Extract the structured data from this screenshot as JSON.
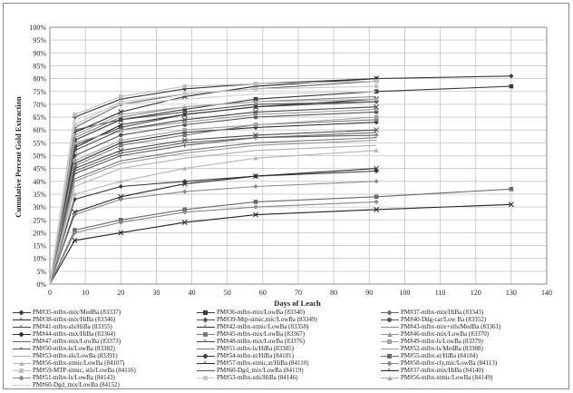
{
  "chart_data": {
    "type": "line",
    "title": "",
    "xlabel": "Days of Leach",
    "ylabel": "Cumulative Percent Gold Extraction",
    "xlim": [
      0,
      140
    ],
    "ylim": [
      0,
      100
    ],
    "x_ticks": [
      "0",
      "10",
      "20",
      "30",
      "40",
      "50",
      "60",
      "70",
      "80",
      "90",
      "100",
      "110",
      "120",
      "130",
      "140"
    ],
    "y_ticks": [
      "0%",
      "5%",
      "10%",
      "15%",
      "20%",
      "25%",
      "30%",
      "35%",
      "40%",
      "45%",
      "50%",
      "55%",
      "60%",
      "65%",
      "70%",
      "75%",
      "80%",
      "85%",
      "90%",
      "95%",
      "100%"
    ],
    "grid": true,
    "legend_position": "bottom",
    "series": [
      {
        "name": "PM#35-mlbx-mix/MedBa (83337)",
        "color": "#3a3a3a",
        "marker": "diamond",
        "x": [
          0,
          7,
          20,
          38,
          58,
          92,
          130
        ],
        "values": [
          0,
          65,
          72,
          76,
          78,
          80,
          81
        ]
      },
      {
        "name": "PM#36-mlbx-mix/LowBa (83340)",
        "color": "#3a3a3a",
        "marker": "square",
        "x": [
          0,
          7,
          20,
          38,
          58,
          92,
          130
        ],
        "values": [
          0,
          56,
          64,
          68,
          72,
          75,
          77
        ]
      },
      {
        "name": "PM#37-mlbx-mix/HiBa (83343)",
        "color": "#6a6a6a",
        "marker": "diamond",
        "x": [
          0,
          7,
          20,
          38,
          58,
          92
        ],
        "values": [
          0,
          61,
          70,
          74,
          76,
          79
        ]
      },
      {
        "name": "PM#38-mlbx-mix/HiBa (83346)",
        "color": "#2a2a2a",
        "marker": "cross",
        "x": [
          0,
          7,
          20,
          38,
          58,
          92
        ],
        "values": [
          0,
          59,
          67,
          73,
          77,
          80
        ]
      },
      {
        "name": "PM#39-Mtp-stmic,mic/LowBa (83349)",
        "color": "#555555",
        "marker": "diamond",
        "x": [
          0,
          7,
          20,
          38,
          58,
          92
        ],
        "values": [
          0,
          54,
          61,
          66,
          69,
          71
        ]
      },
      {
        "name": "PM#40-Ddg-car/Low Ba (83352)",
        "color": "#555555",
        "marker": "circle",
        "x": [
          0,
          7,
          20,
          38,
          58,
          92
        ],
        "values": [
          0,
          50,
          58,
          62,
          65,
          67
        ]
      },
      {
        "name": "PM#41-mlbx-sls/HiBa (83355)",
        "color": "#444444",
        "marker": "cross",
        "x": [
          0,
          7,
          20,
          38,
          58,
          92
        ],
        "values": [
          0,
          52,
          60,
          64,
          67,
          69
        ]
      },
      {
        "name": "PM#42-mlbx-stmic/LowBa (83358)",
        "color": "#333333",
        "marker": "cross",
        "x": [
          0,
          7,
          20,
          38,
          58,
          92
        ],
        "values": [
          0,
          53,
          62,
          66,
          69,
          72
        ]
      },
      {
        "name": "PM#43-mlbx-mix+stls/MedBa (83361)",
        "color": "#8a8a8a",
        "marker": "none",
        "x": [
          0,
          7,
          20,
          38,
          58,
          92
        ],
        "values": [
          0,
          57,
          65,
          69,
          71,
          73
        ]
      },
      {
        "name": "PM#44-mlbx-mix/HiBa (83364)",
        "color": "#2e2e2e",
        "marker": "diamond",
        "x": [
          0,
          7,
          20,
          38,
          58,
          92
        ],
        "values": [
          0,
          47,
          55,
          59,
          61,
          63
        ]
      },
      {
        "name": "PM#45-mlbx-mix/LowBa (83367)",
        "color": "#7a7a7a",
        "marker": "square",
        "x": [
          0,
          7,
          20,
          38,
          58,
          92
        ],
        "values": [
          0,
          46,
          54,
          58,
          62,
          64
        ]
      },
      {
        "name": "PM#46-mlbx-mix/LowBa (83370)",
        "color": "#9a9a9a",
        "marker": "triangle",
        "x": [
          0,
          7,
          20,
          38,
          58,
          92
        ],
        "values": [
          0,
          55,
          60,
          63,
          66,
          68
        ]
      },
      {
        "name": "PM#47-mlbx-mix/LowBa (83373)",
        "color": "#666666",
        "marker": "none",
        "x": [
          0,
          7,
          20,
          38,
          58,
          92
        ],
        "values": [
          0,
          44,
          51,
          55,
          57,
          59
        ]
      },
      {
        "name": "PM#48-mlbx-mix/LowBa (83376)",
        "color": "#4a4a4a",
        "marker": "cross",
        "x": [
          0,
          7,
          20,
          38,
          58,
          92
        ],
        "values": [
          0,
          45,
          52,
          56,
          58,
          60
        ]
      },
      {
        "name": "PM#49-mlbx-ls/LowBa (83379)",
        "color": "#a0a0a0",
        "marker": "square",
        "x": [
          0,
          7,
          20,
          38,
          58,
          92
        ],
        "values": [
          0,
          48,
          56,
          60,
          62,
          65
        ]
      },
      {
        "name": "PM#50-mlbx-ls/LowBa (83382)",
        "color": "#5a5a5a",
        "marker": "plus",
        "x": [
          0,
          7,
          20,
          38,
          58,
          92
        ],
        "values": [
          0,
          43,
          50,
          54,
          57,
          58
        ]
      },
      {
        "name": "PM#51-mlbx-ls/HiBa (83385)",
        "color": "#777777",
        "marker": "none",
        "x": [
          0,
          7,
          20,
          38,
          58,
          92
        ],
        "values": [
          0,
          41,
          48,
          52,
          55,
          57
        ]
      },
      {
        "name": "PM#52-mlbx-ls/MedBa (83388)",
        "color": "#999999",
        "marker": "none",
        "x": [
          0,
          7,
          20,
          38,
          58,
          92
        ],
        "values": [
          0,
          40,
          47,
          51,
          54,
          56
        ]
      },
      {
        "name": "PM#53-mlbx-sls/LowBa (83391)",
        "color": "#b0b0b0",
        "marker": "none",
        "x": [
          0,
          7,
          20,
          38,
          58,
          92
        ],
        "values": [
          0,
          38,
          45,
          49,
          52,
          54
        ]
      },
      {
        "name": "PM#54-mlbx-st/HiBa (84101)",
        "color": "#3a3a3a",
        "marker": "diamond",
        "x": [
          0,
          7,
          20,
          38,
          58,
          92
        ],
        "values": [
          0,
          33,
          38,
          40,
          42,
          44
        ]
      },
      {
        "name": "PM#55-mlbx-st/HiBa (84104)",
        "color": "#6a6a6a",
        "marker": "square",
        "x": [
          0,
          7,
          20,
          38,
          58,
          92,
          130
        ],
        "values": [
          0,
          21,
          25,
          29,
          32,
          34,
          37
        ]
      },
      {
        "name": "PM#56-mlbx-stmic/LowBa (84107)",
        "color": "#b5b5b5",
        "marker": "triangle",
        "x": [
          0,
          7,
          20,
          38,
          58,
          92
        ],
        "values": [
          0,
          35,
          40,
          45,
          49,
          52
        ]
      },
      {
        "name": "PM#57-mlbx-stmic,st/HiBa (84110)",
        "color": "#2a2a2a",
        "marker": "cross",
        "x": [
          0,
          7,
          20,
          38,
          58,
          92
        ],
        "values": [
          0,
          28,
          34,
          39,
          42,
          45
        ]
      },
      {
        "name": "PM#58-mlbx-cly,mic/LowBa (84113)",
        "color": "#8a8a8a",
        "marker": "diamond",
        "x": [
          0,
          7,
          20,
          38,
          58,
          92
        ],
        "values": [
          0,
          27,
          33,
          36,
          38,
          40
        ]
      },
      {
        "name": "PM#59-MTP-stmic, stls/LowBa (84116)",
        "color": "#c0c0c0",
        "marker": "square",
        "x": [
          0,
          7,
          20,
          38,
          58,
          92
        ],
        "values": [
          0,
          66,
          73,
          77,
          78,
          79
        ]
      },
      {
        "name": "PM#60-Dgd_mix/LowBa (84119)",
        "color": "#555555",
        "marker": "none",
        "x": [
          0,
          7,
          20,
          38,
          58,
          92
        ],
        "values": [
          0,
          60,
          64,
          67,
          70,
          71
        ]
      },
      {
        "name": "PM#37-mlbx-mix/HiBa (84140)",
        "color": "#222222",
        "marker": "cross",
        "x": [
          0,
          7,
          20,
          38,
          58,
          92,
          130
        ],
        "values": [
          0,
          17,
          20,
          24,
          27,
          29,
          31
        ]
      },
      {
        "name": "PM#51-mlbx-ls/LowBa (84143)",
        "color": "#888888",
        "marker": "diamond",
        "x": [
          0,
          7,
          20,
          38,
          58,
          92
        ],
        "values": [
          0,
          20,
          24,
          28,
          30,
          32
        ]
      },
      {
        "name": "PM#53-mlbx-stls/HiBa (84146)",
        "color": "#c8c8c8",
        "marker": "square",
        "x": [
          0,
          7,
          20,
          38,
          58,
          92
        ],
        "values": [
          0,
          62,
          71,
          74,
          76,
          77
        ]
      },
      {
        "name": "PM#56-mlbx-stmic/LowBa (84149)",
        "color": "#a8a8a8",
        "marker": "triangle",
        "x": [
          0,
          7,
          20,
          38,
          58,
          92
        ],
        "values": [
          0,
          58,
          66,
          69,
          71,
          72
        ]
      },
      {
        "name": "PM#60-Dgd_mix/LowBa (84152)",
        "color": "#d0d0d0",
        "marker": "none",
        "x": [
          0,
          7,
          20,
          38,
          58,
          92
        ],
        "values": [
          0,
          64,
          70,
          72,
          74,
          75
        ]
      }
    ]
  }
}
